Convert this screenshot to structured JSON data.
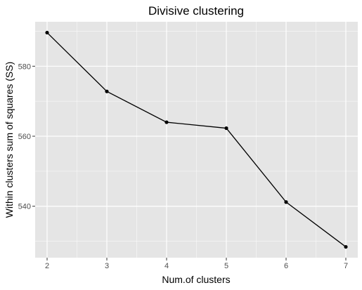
{
  "chart_data": {
    "type": "line",
    "title": "Divisive clustering",
    "xlabel": "Num.of clusters",
    "ylabel": "Within clusters sum of squares (SS)",
    "x": [
      2,
      3,
      4,
      5,
      6,
      7
    ],
    "series": [
      {
        "values": [
          589.6,
          572.8,
          564.0,
          562.3,
          541.2,
          528.4
        ]
      }
    ],
    "xlim": [
      1.8,
      7.2
    ],
    "ylim": [
      525.3,
      592.7
    ],
    "xticks": [
      2,
      3,
      4,
      5,
      6,
      7
    ],
    "yticks": [
      540,
      560,
      580
    ],
    "xtick_labels": [
      "2",
      "3",
      "4",
      "5",
      "6",
      "7"
    ],
    "ytick_labels": [
      "540",
      "560",
      "580"
    ],
    "grid": true,
    "legend": "none",
    "colors": {
      "panel_background": "#e5e5e5",
      "grid": "#ffffff",
      "line": "#000000",
      "point": "#000000"
    }
  }
}
